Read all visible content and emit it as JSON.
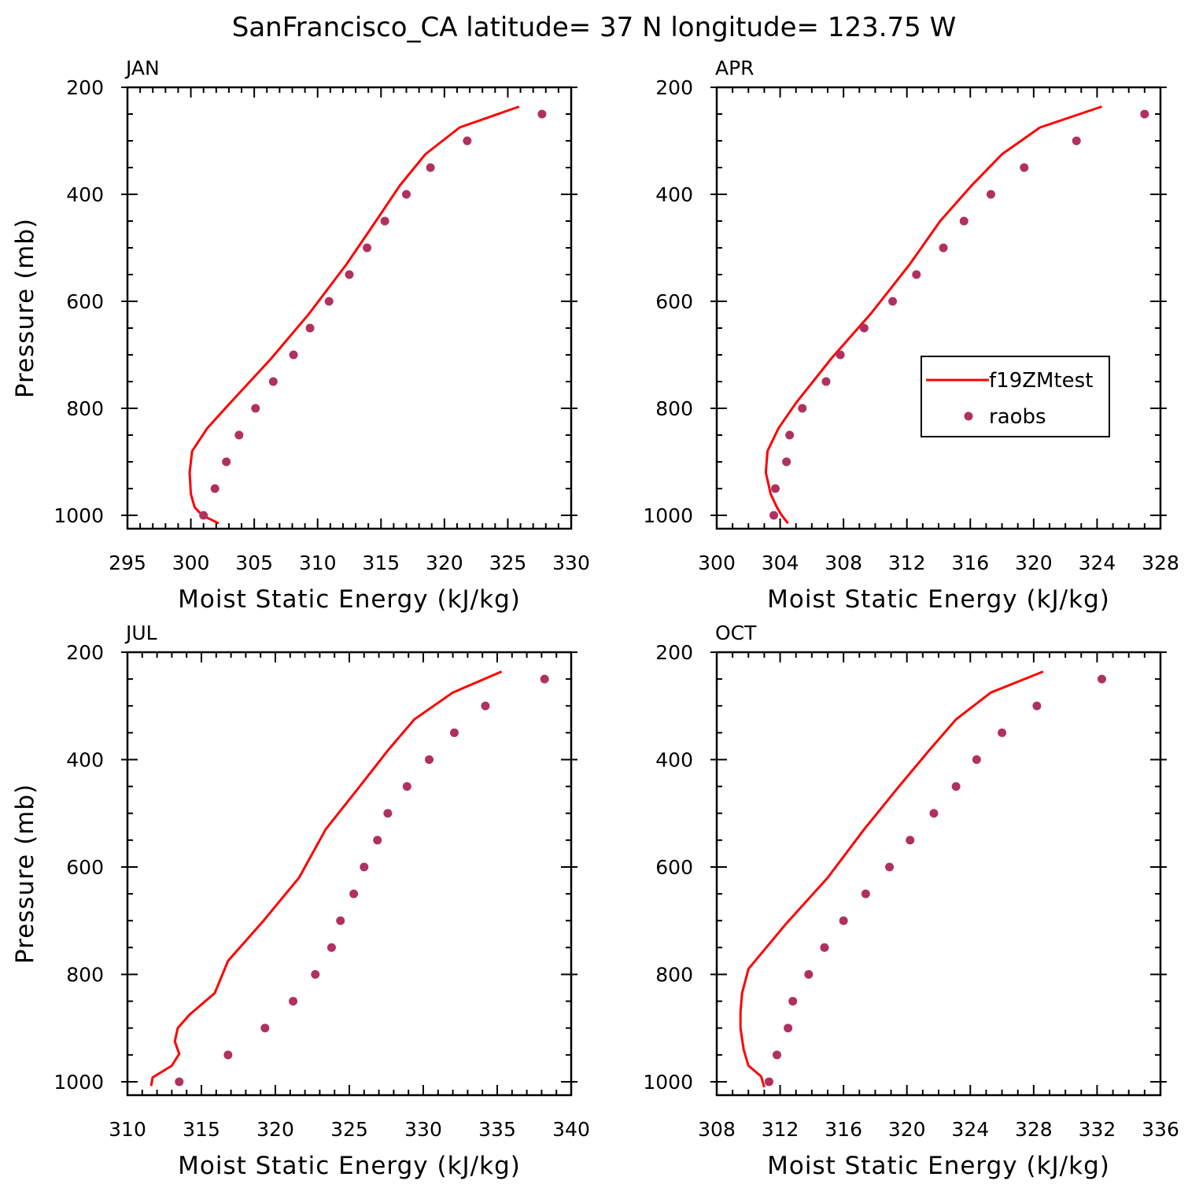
{
  "figure": {
    "title": "SanFrancisco_CA  latitude= 37 N longitude= 123.75 W"
  },
  "chart_data": [
    {
      "type": "line",
      "panel": "JAN",
      "xlabel": "Moist Static Energy (kJ/kg)",
      "ylabel": "Pressure (mb)",
      "xlim": [
        295,
        330
      ],
      "xticks": [
        295,
        300,
        305,
        310,
        315,
        320,
        325,
        330
      ],
      "xminor": 1,
      "ylim": [
        200,
        1025
      ],
      "yticks": [
        200,
        400,
        600,
        800,
        1000
      ],
      "yminor": 50,
      "yreverse": true,
      "grid": false,
      "series": [
        {
          "name": "f19ZMtest",
          "kind": "line",
          "color": "#ff0000",
          "x": [
            325.9,
            321.2,
            318.5,
            316.5,
            314.6,
            312.3,
            309.3,
            306.3,
            303.1,
            301.3,
            300.1,
            299.9,
            300.0,
            300.3,
            300.9,
            302.2
          ],
          "y": [
            236,
            275,
            325,
            383,
            450,
            530,
            624,
            708,
            790,
            837,
            880,
            920,
            960,
            985,
            1000,
            1015
          ]
        },
        {
          "name": "raobs",
          "kind": "scatter",
          "color": "#b03060",
          "x": [
            327.7,
            321.8,
            318.9,
            317.0,
            315.3,
            313.9,
            312.5,
            310.9,
            309.4,
            308.1,
            306.5,
            305.1,
            303.8,
            302.8,
            301.9,
            301.0
          ],
          "y": [
            250,
            300,
            350,
            400,
            450,
            500,
            550,
            600,
            650,
            700,
            750,
            800,
            850,
            900,
            950,
            1000
          ]
        }
      ]
    },
    {
      "type": "line",
      "panel": "APR",
      "xlabel": "Moist Static Energy (kJ/kg)",
      "ylabel": "",
      "xlim": [
        300,
        328
      ],
      "xticks": [
        300,
        304,
        308,
        312,
        316,
        320,
        324,
        328
      ],
      "xminor": 1,
      "ylim": [
        200,
        1025
      ],
      "yticks": [
        200,
        400,
        600,
        800,
        1000
      ],
      "yminor": 50,
      "yreverse": true,
      "grid": false,
      "legend": {
        "position": "right-middle",
        "entries": [
          "f19ZMtest",
          "raobs"
        ]
      },
      "series": [
        {
          "name": "f19ZMtest",
          "kind": "line",
          "color": "#ff0000",
          "x": [
            324.3,
            320.4,
            318.0,
            316.1,
            314.1,
            312.2,
            309.7,
            307.2,
            305.0,
            303.9,
            303.2,
            303.1,
            303.4,
            303.8,
            304.1,
            304.5
          ],
          "y": [
            236,
            275,
            325,
            383,
            450,
            530,
            624,
            708,
            790,
            837,
            880,
            920,
            960,
            985,
            1000,
            1015
          ]
        },
        {
          "name": "raobs",
          "kind": "scatter",
          "color": "#b03060",
          "x": [
            327.0,
            322.7,
            319.4,
            317.3,
            315.6,
            314.3,
            312.6,
            311.1,
            309.3,
            307.8,
            306.9,
            305.4,
            304.6,
            304.4,
            303.7,
            303.6
          ],
          "y": [
            250,
            300,
            350,
            400,
            450,
            500,
            550,
            600,
            650,
            700,
            750,
            800,
            850,
            900,
            950,
            1000
          ]
        }
      ]
    },
    {
      "type": "line",
      "panel": "JUL",
      "xlabel": "Moist Static Energy (kJ/kg)",
      "ylabel": "Pressure (mb)",
      "xlim": [
        310,
        340
      ],
      "xticks": [
        310,
        315,
        320,
        325,
        330,
        335,
        340
      ],
      "xminor": 1,
      "ylim": [
        200,
        1025
      ],
      "yticks": [
        200,
        400,
        600,
        800,
        1000
      ],
      "yminor": 50,
      "yreverse": true,
      "grid": false,
      "series": [
        {
          "name": "f19ZMtest",
          "kind": "line",
          "color": "#ff0000",
          "x": [
            335.3,
            332.0,
            329.4,
            327.6,
            325.7,
            323.4,
            321.6,
            319.2,
            316.8,
            315.9,
            314.2,
            313.4,
            313.2,
            313.5,
            313.0,
            311.7,
            311.6
          ],
          "y": [
            236,
            275,
            325,
            383,
            450,
            530,
            620,
            700,
            775,
            835,
            875,
            900,
            925,
            948,
            970,
            992,
            1008
          ]
        },
        {
          "name": "raobs",
          "kind": "scatter",
          "color": "#b03060",
          "x": [
            338.2,
            334.2,
            332.1,
            330.4,
            328.9,
            327.6,
            326.9,
            326.0,
            325.3,
            324.4,
            323.8,
            322.7,
            321.2,
            319.3,
            316.8,
            313.5
          ],
          "y": [
            250,
            300,
            350,
            400,
            450,
            500,
            550,
            600,
            650,
            700,
            750,
            800,
            850,
            900,
            950,
            1000
          ]
        }
      ]
    },
    {
      "type": "line",
      "panel": "OCT",
      "xlabel": "Moist Static Energy (kJ/kg)",
      "ylabel": "",
      "xlim": [
        308,
        336
      ],
      "xticks": [
        308,
        312,
        316,
        320,
        324,
        328,
        332,
        336
      ],
      "xminor": 1,
      "ylim": [
        200,
        1025
      ],
      "yticks": [
        200,
        400,
        600,
        800,
        1000
      ],
      "yminor": 50,
      "yreverse": true,
      "grid": false,
      "series": [
        {
          "name": "f19ZMtest",
          "kind": "line",
          "color": "#ff0000",
          "x": [
            328.6,
            325.3,
            323.1,
            321.4,
            319.5,
            317.3,
            315.0,
            312.4,
            310.0,
            309.6,
            309.5,
            309.5,
            309.7,
            310.0,
            310.8,
            311.0
          ],
          "y": [
            236,
            275,
            325,
            383,
            450,
            530,
            620,
            705,
            790,
            835,
            870,
            900,
            940,
            970,
            990,
            1010
          ]
        },
        {
          "name": "raobs",
          "kind": "scatter",
          "color": "#b03060",
          "x": [
            332.3,
            328.2,
            326.0,
            324.4,
            323.1,
            321.7,
            320.2,
            318.9,
            317.4,
            316.0,
            314.8,
            313.8,
            312.8,
            312.5,
            311.8,
            311.3
          ],
          "y": [
            250,
            300,
            350,
            400,
            450,
            500,
            550,
            600,
            650,
            700,
            750,
            800,
            850,
            900,
            950,
            1000
          ]
        }
      ]
    }
  ]
}
